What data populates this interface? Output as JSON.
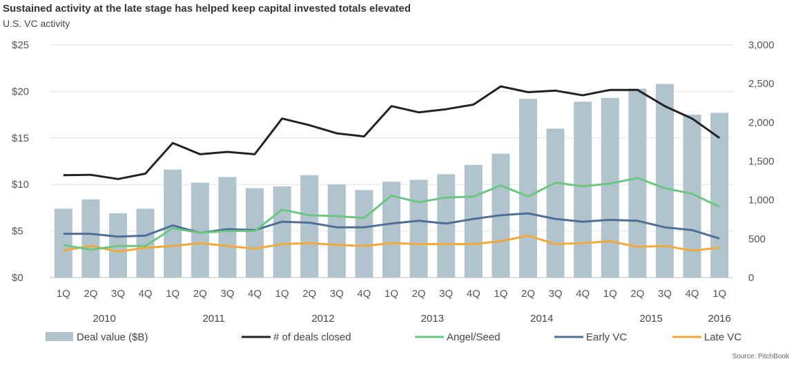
{
  "chart_data": {
    "type": "bar",
    "title": "Sustained activity at the late stage has helped keep capital invested totals elevated",
    "subtitle": "U.S. VC activity",
    "source": "Source: PitchBook",
    "categories": [
      "1Q",
      "2Q",
      "3Q",
      "4Q",
      "1Q",
      "2Q",
      "3Q",
      "4Q",
      "1Q",
      "2Q",
      "3Q",
      "4Q",
      "1Q",
      "2Q",
      "3Q",
      "4Q",
      "1Q",
      "2Q",
      "3Q",
      "4Q",
      "1Q",
      "2Q",
      "3Q",
      "4Q",
      "1Q"
    ],
    "years": [
      {
        "label": "2010",
        "start": 0,
        "end": 3
      },
      {
        "label": "2011",
        "start": 4,
        "end": 7
      },
      {
        "label": "2012",
        "start": 8,
        "end": 11
      },
      {
        "label": "2013",
        "start": 12,
        "end": 15
      },
      {
        "label": "2014",
        "start": 16,
        "end": 19
      },
      {
        "label": "2015",
        "start": 20,
        "end": 23
      },
      {
        "label": "2016",
        "start": 24,
        "end": 24
      }
    ],
    "y_left": {
      "ticks": [
        "$0",
        "$5",
        "$10",
        "$15",
        "$20",
        "$25"
      ],
      "lim": [
        0,
        25
      ]
    },
    "y_right": {
      "ticks": [
        "0",
        "500",
        "1,000",
        "1,500",
        "2,000",
        "2,500",
        "3,000"
      ],
      "lim": [
        0,
        3000
      ]
    },
    "bars": {
      "name": "Deal value ($B)",
      "color": "#b1c3cd",
      "values": [
        7.4,
        8.4,
        6.9,
        7.4,
        11.6,
        10.2,
        10.8,
        9.6,
        9.8,
        11.0,
        10.0,
        9.4,
        10.3,
        10.5,
        11.1,
        12.1,
        13.3,
        19.2,
        16.0,
        18.9,
        19.3,
        20.3,
        20.8,
        17.5,
        17.7
      ]
    },
    "series": [
      {
        "name": "# of deals closed",
        "axis": "right",
        "color": "#222222",
        "values": [
          1320,
          1325,
          1270,
          1340,
          1735,
          1590,
          1620,
          1590,
          2050,
          1965,
          1860,
          1820,
          2210,
          2130,
          2170,
          2230,
          2465,
          2390,
          2410,
          2350,
          2420,
          2420,
          2210,
          2050,
          1800
        ]
      },
      {
        "name": "Angel/Seed",
        "axis": "left",
        "color": "#6cc682",
        "values": [
          3.5,
          3.0,
          3.4,
          3.4,
          5.3,
          4.8,
          5.0,
          5.0,
          7.3,
          6.7,
          6.6,
          6.4,
          8.8,
          8.1,
          8.6,
          8.7,
          9.9,
          8.7,
          10.2,
          9.8,
          10.1,
          10.7,
          9.6,
          9.0,
          7.6
        ]
      },
      {
        "name": "Early VC",
        "axis": "left",
        "color": "#4f6e96",
        "values": [
          4.7,
          4.7,
          4.4,
          4.5,
          5.6,
          4.8,
          5.2,
          5.1,
          6.0,
          5.9,
          5.4,
          5.4,
          5.8,
          6.1,
          5.8,
          6.3,
          6.7,
          6.9,
          6.3,
          6.0,
          6.2,
          6.1,
          5.4,
          5.1,
          4.2
        ]
      },
      {
        "name": "Late VC",
        "axis": "left",
        "color": "#f2a93b",
        "values": [
          2.9,
          3.4,
          2.8,
          3.2,
          3.4,
          3.7,
          3.4,
          3.1,
          3.6,
          3.7,
          3.5,
          3.4,
          3.7,
          3.6,
          3.6,
          3.6,
          3.9,
          4.5,
          3.6,
          3.7,
          3.9,
          3.3,
          3.4,
          2.9,
          3.2
        ]
      }
    ],
    "legend": [
      "Deal value ($B)",
      "# of deals closed",
      "Angel/Seed",
      "Early VC",
      "Late VC"
    ],
    "grid": true,
    "legend_position": "bottom"
  }
}
